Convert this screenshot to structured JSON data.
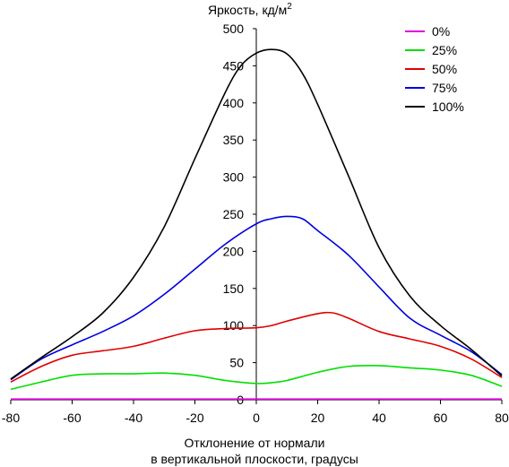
{
  "chart_data": {
    "type": "line",
    "title": "",
    "ylabel": "Яркость, кд/м",
    "ylabel_superscript": "2",
    "xlabel_line1": "Отклонение от нормали",
    "xlabel_line2": "в вертикальной плоскости, градусы",
    "xlim": [
      -80,
      80
    ],
    "ylim": [
      0,
      500
    ],
    "xticks": [
      -80,
      -60,
      -40,
      -20,
      0,
      20,
      40,
      60,
      80
    ],
    "yticks": [
      0,
      50,
      100,
      150,
      200,
      250,
      300,
      350,
      400,
      450,
      500
    ],
    "grid": false,
    "legend_position": "top-right",
    "series": [
      {
        "name": "0%",
        "color": "#e000e0",
        "points": [
          [
            -80,
            1
          ],
          [
            -60,
            1
          ],
          [
            -40,
            1
          ],
          [
            -20,
            1
          ],
          [
            0,
            1
          ],
          [
            20,
            1
          ],
          [
            40,
            1
          ],
          [
            60,
            1
          ],
          [
            80,
            1
          ]
        ]
      },
      {
        "name": "25%",
        "color": "#00e000",
        "points": [
          [
            -80,
            14
          ],
          [
            -70,
            24
          ],
          [
            -60,
            33
          ],
          [
            -50,
            35
          ],
          [
            -40,
            35
          ],
          [
            -30,
            36
          ],
          [
            -20,
            33
          ],
          [
            -10,
            26
          ],
          [
            0,
            22
          ],
          [
            5,
            23
          ],
          [
            10,
            26
          ],
          [
            20,
            37
          ],
          [
            30,
            45
          ],
          [
            40,
            46
          ],
          [
            50,
            43
          ],
          [
            60,
            40
          ],
          [
            70,
            33
          ],
          [
            80,
            18
          ]
        ]
      },
      {
        "name": "50%",
        "color": "#e00000",
        "points": [
          [
            -80,
            24
          ],
          [
            -70,
            45
          ],
          [
            -60,
            60
          ],
          [
            -50,
            66
          ],
          [
            -40,
            72
          ],
          [
            -30,
            83
          ],
          [
            -20,
            93
          ],
          [
            -10,
            96
          ],
          [
            0,
            97
          ],
          [
            5,
            100
          ],
          [
            10,
            106
          ],
          [
            20,
            116
          ],
          [
            25,
            117
          ],
          [
            30,
            110
          ],
          [
            40,
            92
          ],
          [
            50,
            82
          ],
          [
            60,
            72
          ],
          [
            70,
            55
          ],
          [
            80,
            30
          ]
        ]
      },
      {
        "name": "75%",
        "color": "#0000e0",
        "points": [
          [
            -80,
            27
          ],
          [
            -70,
            55
          ],
          [
            -60,
            74
          ],
          [
            -50,
            92
          ],
          [
            -40,
            113
          ],
          [
            -30,
            142
          ],
          [
            -20,
            176
          ],
          [
            -10,
            210
          ],
          [
            0,
            237
          ],
          [
            5,
            244
          ],
          [
            10,
            247
          ],
          [
            15,
            244
          ],
          [
            20,
            228
          ],
          [
            30,
            195
          ],
          [
            40,
            152
          ],
          [
            50,
            110
          ],
          [
            60,
            87
          ],
          [
            70,
            65
          ],
          [
            80,
            34
          ]
        ]
      },
      {
        "name": "100%",
        "color": "#000000",
        "points": [
          [
            -80,
            28
          ],
          [
            -70,
            57
          ],
          [
            -60,
            85
          ],
          [
            -50,
            117
          ],
          [
            -40,
            165
          ],
          [
            -30,
            233
          ],
          [
            -20,
            325
          ],
          [
            -10,
            415
          ],
          [
            -5,
            450
          ],
          [
            0,
            467
          ],
          [
            5,
            472
          ],
          [
            10,
            466
          ],
          [
            15,
            440
          ],
          [
            20,
            398
          ],
          [
            30,
            302
          ],
          [
            40,
            205
          ],
          [
            50,
            140
          ],
          [
            60,
            100
          ],
          [
            70,
            68
          ],
          [
            80,
            32
          ]
        ]
      }
    ]
  }
}
